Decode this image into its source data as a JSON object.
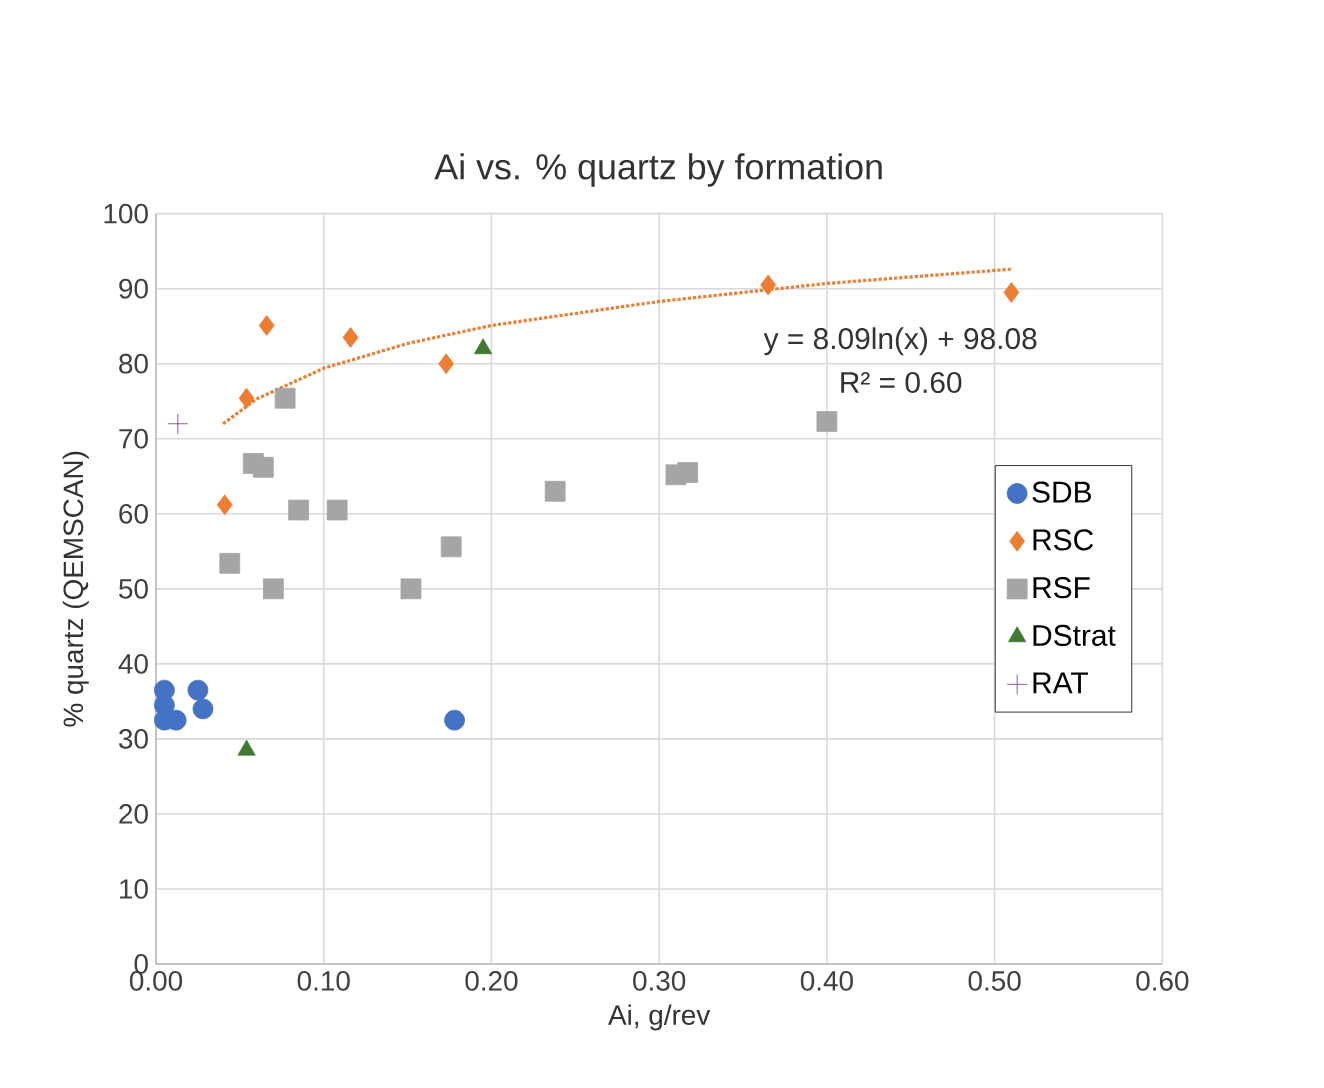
{
  "chart_data": {
    "type": "scatter",
    "title": "Ai vs. % quartz by formation",
    "xlabel": "Ai, g/rev",
    "ylabel": "% quartz (QEMSCAN)",
    "xlim": [
      0,
      0.6
    ],
    "ylim": [
      0,
      100
    ],
    "xticks": [
      {
        "value": 0,
        "label": "0.00"
      },
      {
        "value": 0.1,
        "label": "0.10"
      },
      {
        "value": 0.2,
        "label": "0.20"
      },
      {
        "value": 0.3,
        "label": "0.30"
      },
      {
        "value": 0.4,
        "label": "0.40"
      },
      {
        "value": 0.5,
        "label": "0.50"
      },
      {
        "value": 0.6,
        "label": "0.60"
      }
    ],
    "yticks": [
      0,
      10,
      20,
      30,
      40,
      50,
      60,
      70,
      80,
      90,
      100
    ],
    "grid": true,
    "legend": "right",
    "series": [
      {
        "name": "SDB",
        "color": "#4472c4",
        "marker": "circle",
        "x": [
          0.005,
          0.005,
          0.005,
          0.012,
          0.025,
          0.028,
          0.178
        ],
        "values": [
          36.5,
          34.5,
          32.5,
          32.5,
          36.5,
          34,
          32.5
        ]
      },
      {
        "name": "RSC",
        "color": "#ed7d31",
        "marker": "diamond",
        "x": [
          0.041,
          0.054,
          0.066,
          0.116,
          0.173,
          0.365,
          0.51
        ],
        "values": [
          61.2,
          75.4,
          85.1,
          83.5,
          80,
          90.5,
          89.5
        ]
      },
      {
        "name": "RSF",
        "color": "#a5a5a5",
        "marker": "square",
        "x": [
          0.044,
          0.058,
          0.064,
          0.07,
          0.077,
          0.085,
          0.108,
          0.152,
          0.176,
          0.238,
          0.31,
          0.317,
          0.4
        ],
        "values": [
          53.4,
          66.7,
          66.2,
          50,
          75.4,
          60.5,
          60.5,
          50,
          55.6,
          63,
          65.2,
          65.5,
          72.3
        ]
      },
      {
        "name": "DStrat",
        "color": "#3f7a2f",
        "marker": "triangle",
        "x": [
          0.054,
          0.195
        ],
        "values": [
          28.5,
          82
        ]
      },
      {
        "name": "RAT",
        "color": "#7030a0",
        "marker": "cross",
        "x": [
          0.013
        ],
        "values": [
          72
        ]
      },
      {
        "type": "line",
        "color": "#ed7d31",
        "marker": "none",
        "line_style": "dotted",
        "x": [
          0.04,
          0.06,
          0.1,
          0.15,
          0.2,
          0.3,
          0.4,
          0.51
        ],
        "values": [
          72.0,
          75.3,
          79.4,
          82.7,
          85.1,
          88.3,
          90.7,
          92.6
        ]
      }
    ],
    "annotations": [
      "y = 8.09ln(x) + 98.08",
      "R² = 0.60"
    ]
  }
}
